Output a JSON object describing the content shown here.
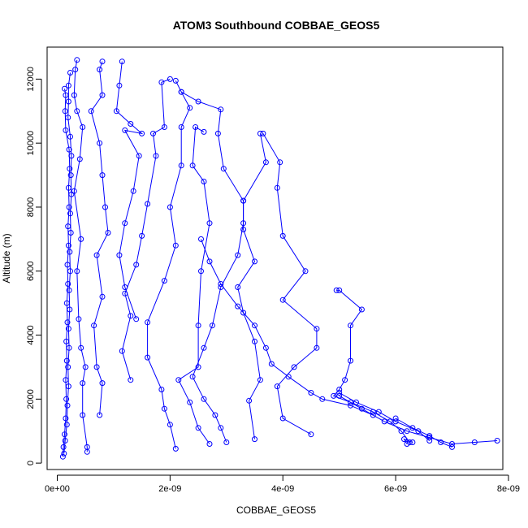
{
  "chart_data": {
    "type": "scatter",
    "title": "ATOM3 Southbound COBBAE_GEOS5",
    "xlabel": "COBBAE_GEOS5",
    "ylabel": "Altitude (m)",
    "xlim": [
      -1.8e-10,
      7.9e-09
    ],
    "ylim": [
      -200,
      13000
    ],
    "x_ticks": [
      0,
      2e-09,
      4e-09,
      6e-09,
      8e-09
    ],
    "x_tick_labels": [
      "0e+00",
      "2e-09",
      "4e-09",
      "6e-09",
      "8e-09"
    ],
    "y_ticks": [
      0,
      2000,
      4000,
      6000,
      8000,
      10000,
      12000
    ],
    "y_tick_labels": [
      "0",
      "2000",
      "4000",
      "6000",
      "8000",
      "10000",
      "12000"
    ],
    "grid": false,
    "marker": "open-circle",
    "colors": {
      "series": "#0000ff",
      "frame": "#000000",
      "background": "#ffffff"
    },
    "series": [
      {
        "values": [
          [
            1e-10,
            200
          ],
          [
            1.1e-10,
            500
          ],
          [
            1.3e-10,
            900
          ],
          [
            1.5e-10,
            1400
          ],
          [
            1.6e-10,
            2000
          ],
          [
            1.5e-10,
            2600
          ],
          [
            1.7e-10,
            3200
          ],
          [
            1.6e-10,
            3800
          ],
          [
            1.8e-10,
            4400
          ],
          [
            1.7e-10,
            5000
          ],
          [
            1.9e-10,
            5600
          ],
          [
            1.8e-10,
            6200
          ],
          [
            2e-10,
            6800
          ],
          [
            1.9e-10,
            7400
          ],
          [
            2.1e-10,
            8000
          ],
          [
            2e-10,
            8600
          ],
          [
            2.2e-10,
            9200
          ],
          [
            2.1e-10,
            9800
          ],
          [
            1.5e-10,
            10400
          ],
          [
            1.4e-10,
            11000
          ],
          [
            1.5e-10,
            11500
          ],
          [
            1.3e-10,
            11700
          ]
        ]
      },
      {
        "values": [
          [
            1.2e-10,
            300
          ],
          [
            1.4e-10,
            700
          ],
          [
            1.7e-10,
            1200
          ],
          [
            1.8e-10,
            1800
          ],
          [
            2e-10,
            2400
          ],
          [
            1.9e-10,
            3000
          ],
          [
            2.1e-10,
            3600
          ],
          [
            2e-10,
            4200
          ],
          [
            2.2e-10,
            4800
          ],
          [
            2.1e-10,
            5400
          ],
          [
            2.3e-10,
            6000
          ],
          [
            2.2e-10,
            6600
          ],
          [
            2.4e-10,
            7200
          ],
          [
            2.3e-10,
            7800
          ],
          [
            2.5e-10,
            8400
          ],
          [
            2.4e-10,
            9000
          ],
          [
            2.5e-10,
            9600
          ],
          [
            2.3e-10,
            10200
          ],
          [
            1.9e-10,
            10800
          ],
          [
            2e-10,
            11300
          ],
          [
            2e-10,
            11800
          ],
          [
            2.3e-10,
            12200
          ]
        ]
      },
      {
        "values": [
          [
            5.3e-10,
            350
          ],
          [
            5.3e-10,
            500
          ],
          [
            4.5e-10,
            1500
          ],
          [
            4.5e-10,
            2500
          ],
          [
            5e-10,
            3000
          ],
          [
            4.2e-10,
            3600
          ],
          [
            3.8e-10,
            4500
          ],
          [
            3.5e-10,
            6000
          ],
          [
            4.2e-10,
            7000
          ],
          [
            3e-10,
            8500
          ],
          [
            4e-10,
            9500
          ],
          [
            4.5e-10,
            10500
          ],
          [
            3.5e-10,
            11000
          ],
          [
            3e-10,
            11500
          ],
          [
            3.2e-10,
            12300
          ],
          [
            3.5e-10,
            12600
          ]
        ]
      },
      {
        "values": [
          [
            7.5e-10,
            1500
          ],
          [
            8e-10,
            2500
          ],
          [
            7e-10,
            3000
          ],
          [
            6.5e-10,
            4300
          ],
          [
            8e-10,
            5200
          ],
          [
            7e-10,
            6500
          ],
          [
            9e-10,
            7200
          ],
          [
            8.5e-10,
            8000
          ],
          [
            8e-10,
            9000
          ],
          [
            7.5e-10,
            10000
          ],
          [
            6e-10,
            11000
          ],
          [
            8e-10,
            11500
          ],
          [
            7.5e-10,
            12300
          ],
          [
            8e-10,
            12550
          ]
        ]
      },
      {
        "values": [
          [
            1.4e-09,
            4500
          ],
          [
            1.2e-09,
            5500
          ],
          [
            1.1e-09,
            6500
          ],
          [
            1.2e-09,
            7500
          ],
          [
            1.35e-09,
            8500
          ],
          [
            1.45e-09,
            9600
          ],
          [
            1.2e-09,
            10400
          ],
          [
            1.5e-09,
            10300
          ],
          [
            1.3e-09,
            10600
          ],
          [
            1.05e-09,
            11000
          ],
          [
            1.1e-09,
            11800
          ],
          [
            1.15e-09,
            12550
          ]
        ]
      },
      {
        "values": [
          [
            1.3e-09,
            2600
          ],
          [
            1.15e-09,
            3500
          ],
          [
            1.3e-09,
            4600
          ],
          [
            1.2e-09,
            5300
          ],
          [
            1.4e-09,
            6200
          ],
          [
            1.5e-09,
            7100
          ],
          [
            1.6e-09,
            8100
          ],
          [
            1.75e-09,
            9600
          ],
          [
            1.7e-09,
            10300
          ],
          [
            1.9e-09,
            10500
          ],
          [
            1.85e-09,
            11900
          ],
          [
            2e-09,
            12000
          ]
        ]
      },
      {
        "values": [
          [
            2.1e-09,
            450
          ],
          [
            2e-09,
            1200
          ],
          [
            1.9e-09,
            1700
          ],
          [
            1.85e-09,
            2300
          ],
          [
            1.6e-09,
            3300
          ],
          [
            1.6e-09,
            4400
          ],
          [
            1.9e-09,
            5700
          ],
          [
            2.1e-09,
            6800
          ],
          [
            2e-09,
            8000
          ],
          [
            2.2e-09,
            9300
          ],
          [
            2.2e-09,
            10500
          ],
          [
            2.35e-09,
            11100
          ],
          [
            2.2e-09,
            11600
          ],
          [
            2.1e-09,
            11950
          ]
        ]
      },
      {
        "values": [
          [
            2.7e-09,
            600
          ],
          [
            2.5e-09,
            1100
          ],
          [
            2.35e-09,
            1900
          ],
          [
            2.15e-09,
            2600
          ],
          [
            2.5e-09,
            3000
          ],
          [
            2.5e-09,
            4300
          ],
          [
            2.55e-09,
            6000
          ],
          [
            2.7e-09,
            7500
          ],
          [
            2.6e-09,
            8800
          ],
          [
            2.4e-09,
            9300
          ],
          [
            2.45e-09,
            10500
          ],
          [
            2.6e-09,
            10350
          ]
        ]
      },
      {
        "values": [
          [
            3e-09,
            650
          ],
          [
            2.9e-09,
            1100
          ],
          [
            2.8e-09,
            1500
          ],
          [
            2.6e-09,
            2000
          ],
          [
            2.4e-09,
            2700
          ],
          [
            2.6e-09,
            3600
          ],
          [
            2.75e-09,
            4300
          ],
          [
            2.9e-09,
            5500
          ],
          [
            3.2e-09,
            6500
          ],
          [
            3.3e-09,
            7500
          ],
          [
            3.3e-09,
            8200
          ],
          [
            2.95e-09,
            9200
          ],
          [
            2.85e-09,
            10300
          ],
          [
            2.9e-09,
            11050
          ],
          [
            2.5e-09,
            11300
          ],
          [
            2.2e-09,
            11600
          ]
        ]
      },
      {
        "values": [
          [
            3.5e-09,
            750
          ],
          [
            3.4e-09,
            1950
          ],
          [
            3.6e-09,
            2600
          ],
          [
            3.5e-09,
            3800
          ],
          [
            3.3e-09,
            4700
          ],
          [
            3.2e-09,
            5500
          ],
          [
            3.5e-09,
            6300
          ],
          [
            3.3e-09,
            7300
          ],
          [
            3.3e-09,
            8200
          ],
          [
            3.7e-09,
            9400
          ],
          [
            3.6e-09,
            10300
          ]
        ]
      },
      {
        "values": [
          [
            4.5e-09,
            900
          ],
          [
            4e-09,
            1400
          ],
          [
            3.9e-09,
            2400
          ],
          [
            4.2e-09,
            3000
          ],
          [
            4.6e-09,
            3600
          ],
          [
            4.6e-09,
            4200
          ],
          [
            4e-09,
            5100
          ],
          [
            4.4e-09,
            6000
          ],
          [
            4e-09,
            7100
          ],
          [
            3.9e-09,
            8600
          ],
          [
            3.95e-09,
            9400
          ],
          [
            3.65e-09,
            10300
          ]
        ]
      },
      {
        "values": [
          [
            5.6e-09,
            1500
          ],
          [
            5.2e-09,
            1800
          ],
          [
            4.7e-09,
            2000
          ],
          [
            4.5e-09,
            2200
          ],
          [
            4.1e-09,
            2700
          ],
          [
            3.8e-09,
            3100
          ],
          [
            3.7e-09,
            3600
          ],
          [
            3.5e-09,
            4300
          ],
          [
            3.2e-09,
            4900
          ],
          [
            2.9e-09,
            5600
          ],
          [
            2.7e-09,
            6300
          ],
          [
            2.55e-09,
            7000
          ]
        ]
      },
      {
        "values": [
          [
            6.25e-09,
            650
          ],
          [
            6.1e-09,
            1000
          ],
          [
            5.9e-09,
            1300
          ],
          [
            5.6e-09,
            1600
          ],
          [
            5.2e-09,
            1900
          ],
          [
            4.9e-09,
            2100
          ],
          [
            5e-09,
            2300
          ],
          [
            5.1e-09,
            2600
          ],
          [
            5.2e-09,
            3200
          ],
          [
            5.2e-09,
            4300
          ],
          [
            5.4e-09,
            4800
          ],
          [
            5e-09,
            5400
          ],
          [
            4.95e-09,
            5400
          ]
        ]
      },
      {
        "values": [
          [
            6.6e-09,
            700
          ],
          [
            6.4e-09,
            1000
          ],
          [
            6e-09,
            1300
          ],
          [
            5.7e-09,
            1600
          ],
          [
            5.3e-09,
            1900
          ],
          [
            5e-09,
            2200
          ]
        ]
      },
      {
        "values": [
          [
            7e-09,
            500
          ],
          [
            6.8e-09,
            650
          ],
          [
            6.6e-09,
            850
          ],
          [
            6.3e-09,
            1100
          ],
          [
            6e-09,
            1400
          ]
        ]
      },
      {
        "values": [
          [
            7.8e-09,
            700
          ],
          [
            7.4e-09,
            650
          ],
          [
            7e-09,
            600
          ],
          [
            6.6e-09,
            800
          ],
          [
            6.2e-09,
            1000
          ],
          [
            5.8e-09,
            1300
          ],
          [
            5.4e-09,
            1700
          ],
          [
            5e-09,
            2100
          ]
        ]
      },
      {
        "values": [
          [
            6.2e-09,
            600
          ],
          [
            6.15e-09,
            750
          ],
          [
            6.3e-09,
            650
          ]
        ]
      }
    ]
  }
}
